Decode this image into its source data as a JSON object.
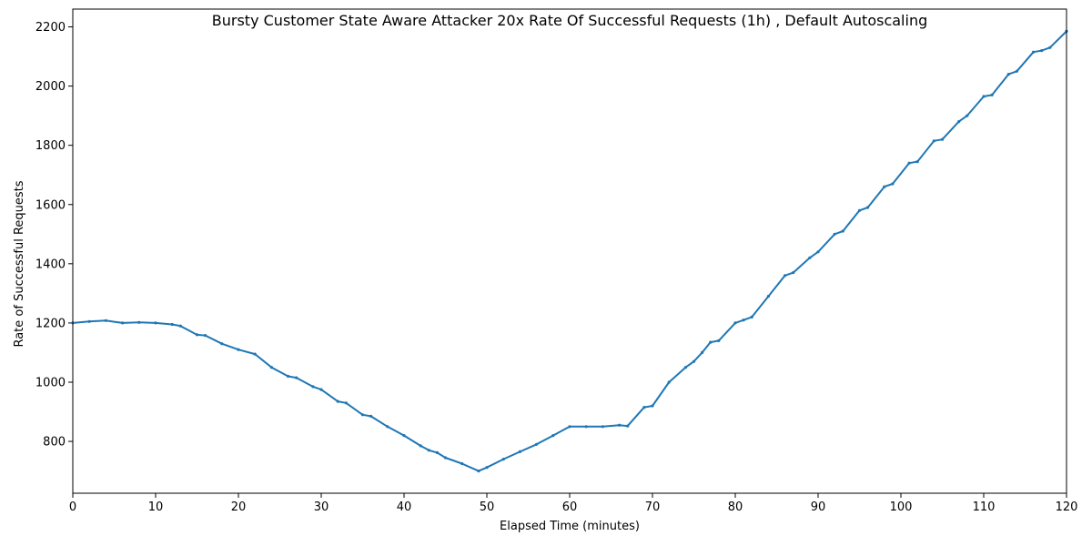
{
  "chart_data": {
    "type": "line",
    "title": "Bursty Customer State Aware Attacker 20x Rate Of Successful Requests (1h) , Default Autoscaling",
    "xlabel": "Elapsed Time (minutes)",
    "ylabel": "Rate of Successful Requests",
    "xlim": [
      0,
      120
    ],
    "ylim": [
      625,
      2260
    ],
    "xticks": [
      0,
      10,
      20,
      30,
      40,
      50,
      60,
      70,
      80,
      90,
      100,
      110,
      120
    ],
    "yticks": [
      800,
      1000,
      1200,
      1400,
      1600,
      1800,
      2000,
      2200
    ],
    "grid": false,
    "line_color": "#1f77b4",
    "marker": "small-dot",
    "series": [
      {
        "x": [
          0,
          2,
          4,
          6,
          8,
          10,
          12,
          13,
          15,
          16,
          18,
          20,
          22,
          24,
          26,
          27,
          29,
          30,
          32,
          33,
          35,
          36,
          38,
          40,
          42,
          43,
          44,
          45,
          47,
          49,
          50,
          52,
          54,
          56,
          58,
          60,
          62,
          64,
          66,
          67,
          69,
          70,
          72,
          74,
          75,
          76,
          77,
          78,
          80,
          81,
          82,
          84,
          86,
          87,
          89,
          90,
          92,
          93,
          95,
          96,
          98,
          99,
          101,
          102,
          104,
          105,
          107,
          108,
          110,
          111,
          113,
          114,
          116,
          117,
          118,
          120
        ],
        "y": [
          1200,
          1205,
          1208,
          1200,
          1202,
          1200,
          1195,
          1190,
          1160,
          1158,
          1130,
          1110,
          1095,
          1050,
          1020,
          1015,
          985,
          975,
          935,
          930,
          890,
          885,
          850,
          820,
          785,
          770,
          762,
          745,
          725,
          700,
          712,
          740,
          765,
          790,
          820,
          850,
          850,
          850,
          855,
          852,
          915,
          920,
          1000,
          1050,
          1070,
          1100,
          1135,
          1140,
          1200,
          1210,
          1220,
          1290,
          1360,
          1370,
          1420,
          1440,
          1500,
          1510,
          1580,
          1590,
          1660,
          1670,
          1740,
          1745,
          1815,
          1820,
          1880,
          1900,
          1965,
          1970,
          2040,
          2050,
          2115,
          2120,
          2130,
          2185
        ]
      }
    ]
  }
}
